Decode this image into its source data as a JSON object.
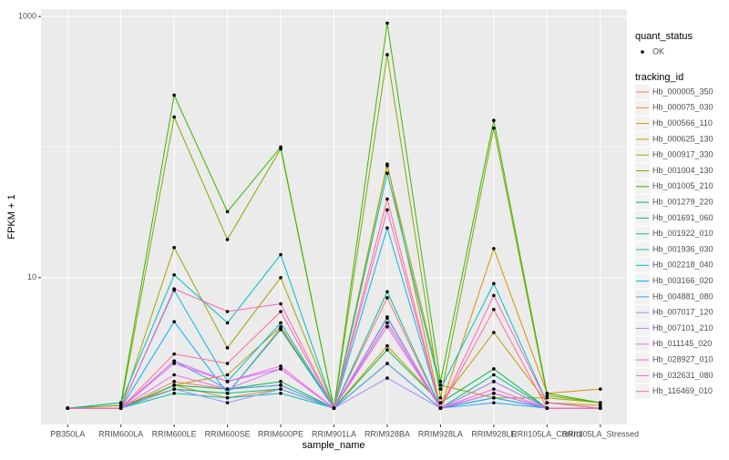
{
  "chart_data": {
    "type": "line",
    "x_label": "sample_name",
    "y_label": "FPKM + 1",
    "log_y": true,
    "grid": true,
    "categories": [
      "PB350LA",
      "RRIM600LA",
      "RRIM600LE",
      "RRIM600SE",
      "RRIM600PE",
      "RRIM901LA",
      "RRIM928BA",
      "RRIM928LA",
      "RRIM928LE",
      "RRII105LA_Control",
      "RRII105LA_Stressed"
    ],
    "ylim": [
      0.75,
      1140
    ],
    "yticks": [
      10,
      1000
    ],
    "point_legend_title": "quant_status",
    "point_legend_label": "OK",
    "point_color": "#000000",
    "legend_title": "tracking_id",
    "series": [
      {
        "name": "Hb_000005_350",
        "color": "#F8766D",
        "values": [
          1,
          1,
          1.6,
          1.4,
          1.5,
          1,
          7,
          1,
          1.3,
          1,
          1
        ]
      },
      {
        "name": "Hb_000075_030",
        "color": "#EA8331",
        "values": [
          1,
          1,
          1.5,
          1.2,
          1.4,
          1,
          2.2,
          1,
          1.2,
          1,
          1
        ]
      },
      {
        "name": "Hb_000566_110",
        "color": "#D89000",
        "values": [
          1,
          1.05,
          1.4,
          1.3,
          4.1,
          1,
          74,
          1,
          16.7,
          1.3,
          1.4
        ]
      },
      {
        "name": "Hb_000625_130",
        "color": "#C09B00",
        "values": [
          1,
          1,
          1.5,
          1.8,
          4.2,
          1,
          3,
          1.1,
          3.8,
          1.1,
          1.05
        ]
      },
      {
        "name": "Hb_000917_330",
        "color": "#A3A500",
        "values": [
          1,
          1,
          17,
          2.9,
          10,
          1,
          72,
          1.5,
          1.2,
          1.2,
          1.1
        ]
      },
      {
        "name": "Hb_001004_130",
        "color": "#7CAE00",
        "values": [
          1,
          1.05,
          170,
          19.6,
          97,
          1,
          510,
          1.2,
          140,
          1.25,
          1.1
        ]
      },
      {
        "name": "Hb_001005_210",
        "color": "#39B600",
        "values": [
          1,
          1.1,
          250,
          32,
          100,
          1,
          890,
          1.6,
          160,
          1.3,
          1.1
        ]
      },
      {
        "name": "Hb_001279_220",
        "color": "#00BB4E",
        "values": [
          1,
          1,
          1.5,
          1.4,
          1.6,
          1,
          2.8,
          1.1,
          2.0,
          1,
          1
        ]
      },
      {
        "name": "Hb_001691_060",
        "color": "#00BF7D",
        "values": [
          1,
          1,
          1.4,
          1.3,
          1.4,
          1,
          4.9,
          1,
          1.8,
          1,
          1
        ]
      },
      {
        "name": "Hb_001922_010",
        "color": "#00C1A3",
        "values": [
          1,
          1,
          1.3,
          1.2,
          1.3,
          1,
          7.8,
          1,
          1.6,
          1,
          1
        ]
      },
      {
        "name": "Hb_001936_030",
        "color": "#00BFC4",
        "values": [
          1,
          1.1,
          10.5,
          4.5,
          15,
          1,
          63,
          1.4,
          9,
          1.1,
          1
        ]
      },
      {
        "name": "Hb_002218_040",
        "color": "#00BAE0",
        "values": [
          1,
          1,
          8,
          1.6,
          4.5,
          1,
          24,
          1,
          1.3,
          1,
          1
        ]
      },
      {
        "name": "Hb_003166_020",
        "color": "#00B0F6",
        "values": [
          1,
          1,
          4.6,
          1.3,
          4,
          1,
          4.5,
          1,
          1.2,
          1,
          1
        ]
      },
      {
        "name": "Hb_004881_080",
        "color": "#35A2FF",
        "values": [
          1,
          1,
          2.3,
          1.4,
          1.5,
          1,
          2.2,
          1,
          1.1,
          1,
          1
        ]
      },
      {
        "name": "Hb_007017_120",
        "color": "#9590FF",
        "values": [
          1,
          1,
          1.4,
          1.1,
          1.4,
          1,
          1.7,
          1,
          1.3,
          1,
          1
        ]
      },
      {
        "name": "Hb_007101_210",
        "color": "#C77CFF",
        "values": [
          1,
          1,
          2.3,
          1.6,
          2.0,
          1,
          5,
          1,
          1.6,
          1,
          1
        ]
      },
      {
        "name": "Hb_011145_020",
        "color": "#E76BF3",
        "values": [
          1,
          1,
          1.8,
          1.4,
          2.0,
          1,
          4.2,
          1,
          1.3,
          1,
          1
        ]
      },
      {
        "name": "Hb_028927_010",
        "color": "#FA62DB",
        "values": [
          1,
          1,
          2.2,
          1.6,
          2.1,
          1,
          4.5,
          1,
          1.4,
          1,
          1
        ]
      },
      {
        "name": "Hb_032631_080",
        "color": "#FF62BC",
        "values": [
          1,
          1,
          8.2,
          5.5,
          6.3,
          1,
          33,
          1,
          7.3,
          1.1,
          1
        ]
      },
      {
        "name": "Hb_116469_010",
        "color": "#FF6C91",
        "values": [
          1,
          1,
          2.6,
          2.2,
          5.5,
          1,
          40,
          1,
          5.7,
          1,
          1
        ]
      }
    ]
  }
}
